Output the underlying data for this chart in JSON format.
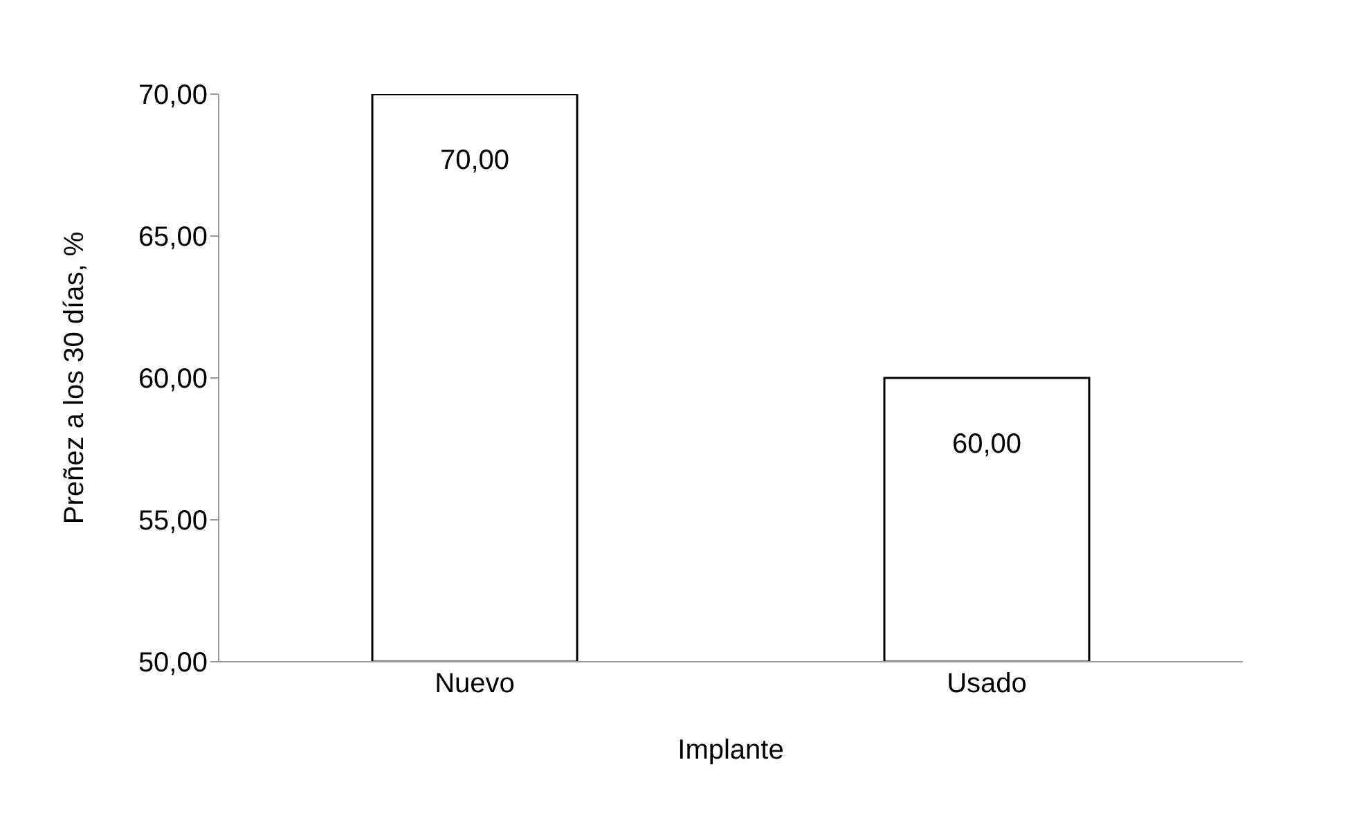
{
  "chart_data": {
    "type": "bar",
    "xlabel": "Implante",
    "ylabel": "Preñez a los 30 días, %",
    "categories": [
      "Nuevo",
      "Usado"
    ],
    "values": [
      70,
      60
    ],
    "value_labels": [
      "70,00",
      "60,00"
    ],
    "color": "#ffffff",
    "ylim": [
      50,
      70
    ],
    "yticks": [
      {
        "value": 50,
        "label": "50,00"
      },
      {
        "value": 55,
        "label": "55,00"
      },
      {
        "value": 60,
        "label": "60,00"
      },
      {
        "value": 65,
        "label": "65,00"
      },
      {
        "value": 70,
        "label": "70,00"
      }
    ],
    "grid": false,
    "legend": false
  }
}
